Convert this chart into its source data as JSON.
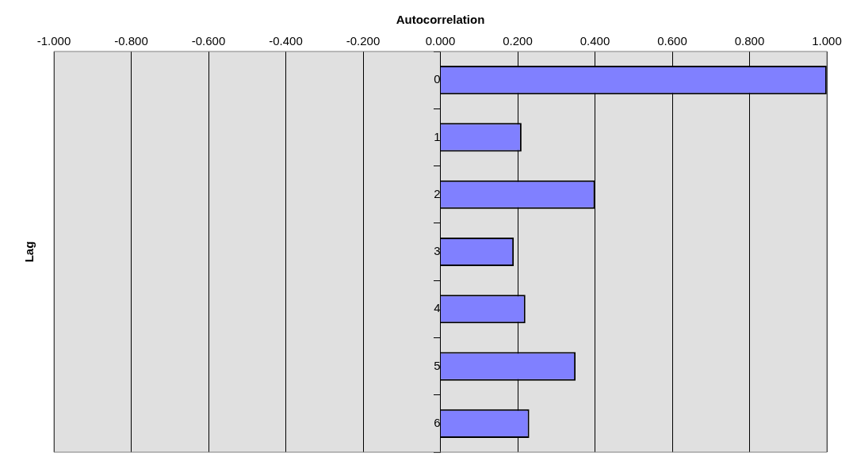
{
  "chart_data": {
    "type": "bar",
    "orientation": "horizontal",
    "title": "Autocorrelation",
    "ylabel": "Lag",
    "categories": [
      "0",
      "1",
      "2",
      "3",
      "4",
      "5",
      "6"
    ],
    "values": [
      1.0,
      0.21,
      0.4,
      0.19,
      0.22,
      0.35,
      0.23
    ],
    "color": "#8080ff",
    "xlim": [
      -1,
      1
    ],
    "xticks": [
      {
        "value": -1,
        "label": "-1.000"
      },
      {
        "value": -0.8,
        "label": "-0.800"
      },
      {
        "value": -0.6,
        "label": "-0.600"
      },
      {
        "value": -0.4,
        "label": "-0.400"
      },
      {
        "value": -0.2,
        "label": "-0.200"
      },
      {
        "value": 0,
        "label": "0.000"
      },
      {
        "value": 0.2,
        "label": "0.200"
      },
      {
        "value": 0.4,
        "label": "0.400"
      },
      {
        "value": 0.6,
        "label": "0.600"
      },
      {
        "value": 0.8,
        "label": "0.800"
      },
      {
        "value": 1,
        "label": "1.000"
      }
    ],
    "grid": "x",
    "legend": false
  }
}
